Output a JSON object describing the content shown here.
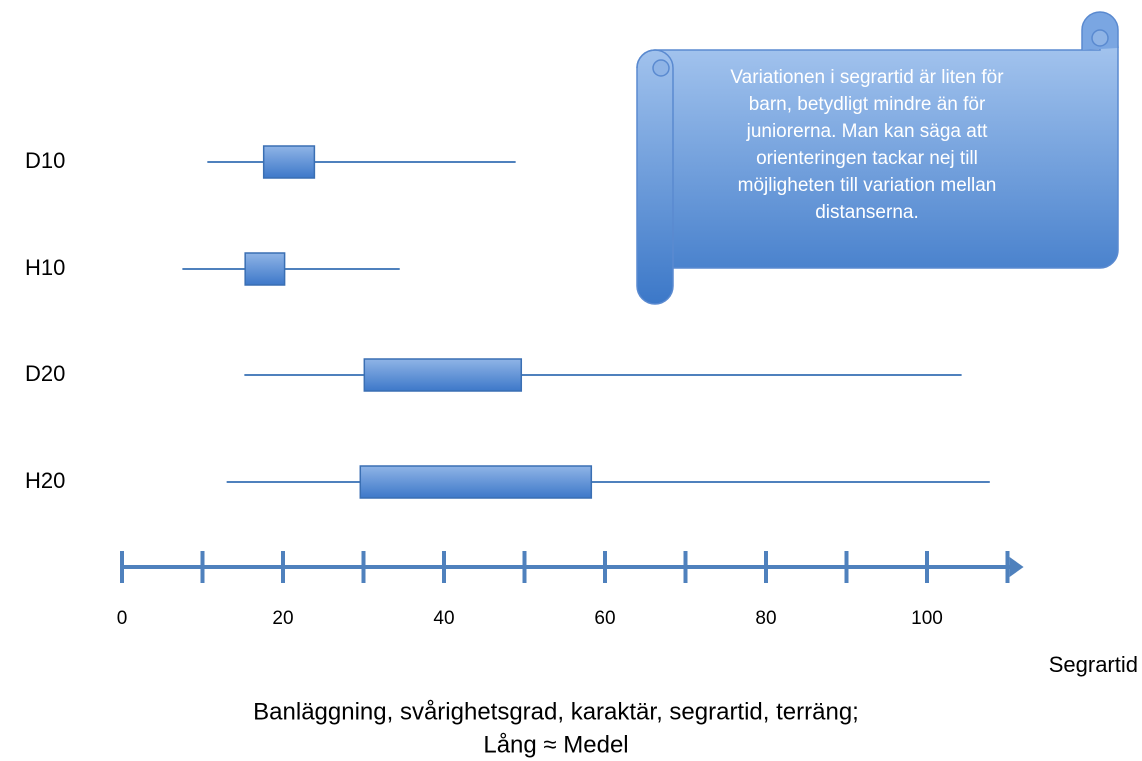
{
  "chart_data": {
    "type": "boxplot",
    "categories": [
      "D10",
      "H10",
      "D20",
      "H20"
    ],
    "min": [
      10.6,
      7.5,
      15.2,
      13.0
    ],
    "q1": [
      17.6,
      15.3,
      30.1,
      29.6
    ],
    "q3": [
      23.9,
      20.2,
      49.6,
      58.3
    ],
    "max": [
      48.9,
      34.5,
      104.3,
      107.8
    ],
    "color": "#4f81bd",
    "xlim": [
      0,
      112
    ],
    "xticks": [
      0,
      20,
      40,
      60,
      80,
      100
    ],
    "minor_xticks": [
      10,
      30,
      50,
      70,
      90,
      110
    ],
    "xlabel": "Segrartid",
    "annotation": [
      "Variationen i segrartid är liten för",
      "barn, betydligt mindre än för",
      "juniorerna. Man kan säga att",
      "orienteringen tackar nej till",
      "möjligheten till variation mellan",
      "distanserna."
    ],
    "caption": [
      "Banläggning, svårighetsgrad, karaktär, segrartid, terräng;",
      "Lång ≈ Medel"
    ]
  }
}
